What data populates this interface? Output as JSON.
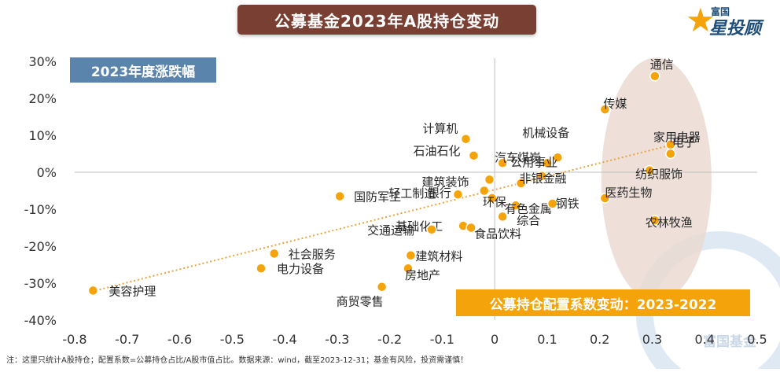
{
  "title": "公募基金2023年A股持仓变动",
  "logo": {
    "small": "富国",
    "big": "星投顾",
    "watermark": "富国基金"
  },
  "footnote": "注：这里只统计A股持仓；配置系数=公募持仓占比/A股市值占比。数据来源：wind，截至2023-12-31；基金有风险，投资需谨慎！",
  "colors": {
    "title_bg": "#7a3f33",
    "ylabel_bg": "#5b84ad",
    "xlabel_bg": "#f5a30b",
    "point": "#f5a30b",
    "trend": "#e8a33d",
    "ellipse": "#ead8cf"
  },
  "chart_data": {
    "type": "scatter",
    "xlabel": "公募持仓配置系数变动：2023-2022",
    "ylabel": "2023年度涨跌幅",
    "xlim": [
      -0.8,
      0.5
    ],
    "ylim": [
      -40,
      30
    ],
    "x_ticks": [
      "-0.8",
      "-0.7",
      "-0.6",
      "-0.5",
      "-0.4",
      "-0.3",
      "-0.2",
      "-0.1",
      "0",
      "0.1",
      "0.2",
      "0.3",
      "0.4",
      "0.5"
    ],
    "x_tick_values": [
      -0.8,
      -0.7,
      -0.6,
      -0.5,
      -0.4,
      -0.3,
      -0.2,
      -0.1,
      0,
      0.1,
      0.2,
      0.3,
      0.4,
      0.5
    ],
    "y_ticks": [
      "30%",
      "20%",
      "10%",
      "0%",
      "-10%",
      "-20%",
      "-30%",
      "-40%"
    ],
    "y_tick_values": [
      30,
      20,
      10,
      0,
      -10,
      -20,
      -30,
      -40
    ],
    "y_unit": "%",
    "grid": false,
    "trendline": {
      "style": "dotted",
      "from": [
        -0.76,
        -32
      ],
      "to": [
        0.34,
        7.5
      ]
    },
    "highlight": {
      "shape": "ellipse",
      "center": [
        0.308,
        -2
      ],
      "radius": [
        0.105,
        33
      ]
    },
    "points": [
      {
        "name": "通信",
        "x": 0.305,
        "y": 26,
        "label_dx": 0.0,
        "label_dy": 0
      },
      {
        "name": "传媒",
        "x": 0.21,
        "y": 17,
        "label_dx": 0.0,
        "label_dy": 0
      },
      {
        "name": "电子",
        "x": 0.335,
        "y": 7.5,
        "label_dx": 0.0,
        "label_dy": 0
      },
      {
        "name": "家用电器",
        "x": 0.335,
        "y": 5,
        "label_dx": 0.0,
        "label_dy": 0
      },
      {
        "name": "纺织服饰",
        "x": 0.295,
        "y": 0.5,
        "label_dx": 0.0,
        "label_dy": 0
      },
      {
        "name": "医药生物",
        "x": 0.21,
        "y": -7,
        "label_dx": 0.0,
        "label_dy": 0
      },
      {
        "name": "农林牧渔",
        "x": 0.305,
        "y": -13,
        "label_dx": 0.0,
        "label_dy": 0
      },
      {
        "name": "计算机",
        "x": -0.055,
        "y": 9,
        "label_dx": 0.0,
        "label_dy": 0
      },
      {
        "name": "机械设备",
        "x": 0.12,
        "y": 4,
        "label_dx": 0.0,
        "label_dy": 0
      },
      {
        "name": "石油石化",
        "x": -0.04,
        "y": 4.5,
        "label_dx": 0.0,
        "label_dy": 0
      },
      {
        "name": "汽车",
        "x": 0.015,
        "y": 2.5,
        "label_dx": 0.0,
        "label_dy": 0
      },
      {
        "name": "煤炭",
        "x": 0.1,
        "y": 2.5,
        "label_dx": 0.0,
        "label_dy": 0
      },
      {
        "name": "公用事业",
        "x": 0.09,
        "y": -1,
        "label_dx": 0.0,
        "label_dy": 0
      },
      {
        "name": "建筑装饰",
        "x": -0.01,
        "y": -2,
        "label_dx": 0.0,
        "label_dy": 0
      },
      {
        "name": "轻工制造",
        "x": -0.07,
        "y": -6,
        "label_dx": 0.0,
        "label_dy": 0
      },
      {
        "name": "非银金融",
        "x": 0.05,
        "y": -3,
        "label_dx": 0.0,
        "label_dy": 0
      },
      {
        "name": "银行",
        "x": -0.02,
        "y": -5,
        "label_dx": 0.0,
        "label_dy": 0
      },
      {
        "name": "环保",
        "x": -0.005,
        "y": -7,
        "label_dx": 0.0,
        "label_dy": 0
      },
      {
        "name": "有色金属",
        "x": 0.04,
        "y": -9,
        "label_dx": 0.0,
        "label_dy": 0
      },
      {
        "name": "钢铁",
        "x": 0.11,
        "y": -8.5,
        "label_dx": 0.0,
        "label_dy": 0
      },
      {
        "name": "国防军工",
        "x": -0.295,
        "y": -6.5,
        "label_dx": 0.0,
        "label_dy": 0
      },
      {
        "name": "基础化工",
        "x": -0.06,
        "y": -14.5,
        "label_dx": 0.0,
        "label_dy": 0
      },
      {
        "name": "综合",
        "x": 0.015,
        "y": -12,
        "label_dx": 0.0,
        "label_dy": 0
      },
      {
        "name": "交通运输",
        "x": -0.12,
        "y": -15.5,
        "label_dx": 0.0,
        "label_dy": 0
      },
      {
        "name": "食品饮料",
        "x": -0.045,
        "y": -15,
        "label_dx": 0.0,
        "label_dy": 0
      },
      {
        "name": "社会服务",
        "x": -0.42,
        "y": -22,
        "label_dx": 0.0,
        "label_dy": 0
      },
      {
        "name": "建筑材料",
        "x": -0.16,
        "y": -22.5,
        "label_dx": 0.0,
        "label_dy": 0
      },
      {
        "name": "电力设备",
        "x": -0.445,
        "y": -26,
        "label_dx": 0.0,
        "label_dy": 0
      },
      {
        "name": "房地产",
        "x": -0.165,
        "y": -26,
        "label_dx": 0.0,
        "label_dy": 0
      },
      {
        "name": "美容护理",
        "x": -0.765,
        "y": -32,
        "label_dx": 0.0,
        "label_dy": 0
      },
      {
        "name": "商贸零售",
        "x": -0.215,
        "y": -31,
        "label_dx": 0.0,
        "label_dy": 0
      }
    ]
  }
}
